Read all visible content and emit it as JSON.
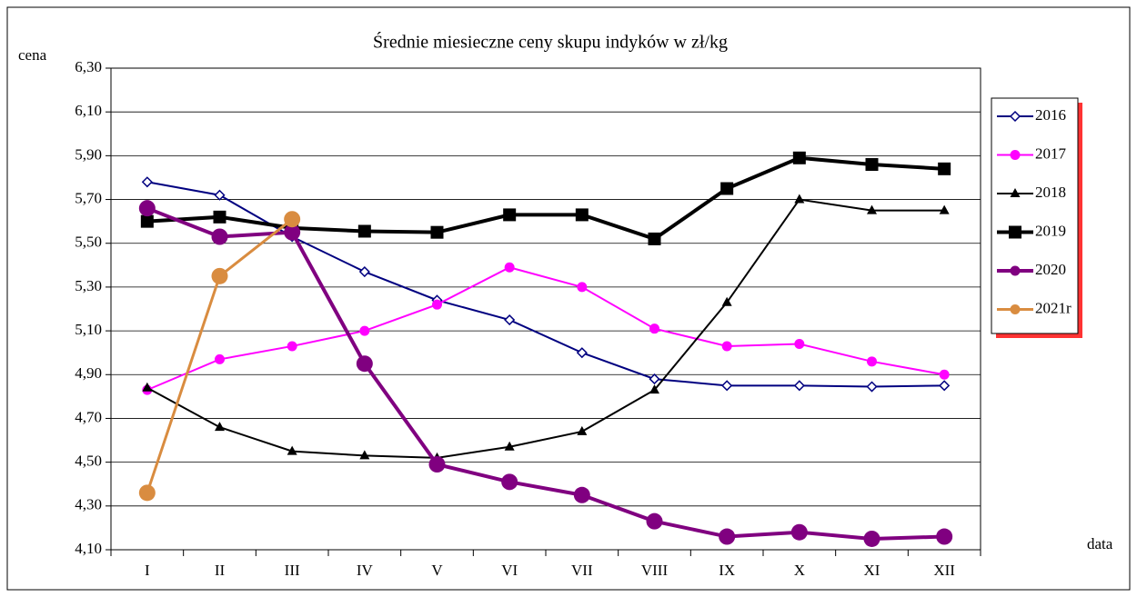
{
  "chart_data": {
    "type": "line",
    "title": "Średnie miesieczne ceny skupu indyków w zł/kg",
    "y_label": "cena",
    "x_label": "data",
    "categories": [
      "I",
      "II",
      "III",
      "IV",
      "V",
      "VI",
      "VII",
      "VIII",
      "IX",
      "X",
      "XI",
      "XII"
    ],
    "ylim": [
      4.1,
      6.3
    ],
    "yticks": [
      {
        "value": 4.1,
        "label": "4,10"
      },
      {
        "value": 4.3,
        "label": "4,30"
      },
      {
        "value": 4.5,
        "label": "4,50"
      },
      {
        "value": 4.7,
        "label": "4,70"
      },
      {
        "value": 4.9,
        "label": "4,90"
      },
      {
        "value": 5.1,
        "label": "5,10"
      },
      {
        "value": 5.3,
        "label": "5,30"
      },
      {
        "value": 5.5,
        "label": "5,50"
      },
      {
        "value": 5.7,
        "label": "5,70"
      },
      {
        "value": 5.9,
        "label": "5,90"
      },
      {
        "value": 6.1,
        "label": "6,10"
      },
      {
        "value": 6.3,
        "label": "6,30"
      }
    ],
    "grid": true,
    "legend": "right",
    "series": [
      {
        "name": "2016",
        "color": "#000080",
        "marker": "diamond",
        "width": 2,
        "values": [
          5.78,
          5.72,
          5.53,
          5.37,
          5.24,
          5.15,
          5.0,
          4.88,
          4.85,
          4.85,
          4.845,
          4.85
        ]
      },
      {
        "name": "2017",
        "color": "#ff00ff",
        "marker": "circle",
        "width": 2,
        "values": [
          4.83,
          4.97,
          5.03,
          5.1,
          5.22,
          5.39,
          5.3,
          5.11,
          5.03,
          5.04,
          4.96,
          4.9
        ]
      },
      {
        "name": "2018",
        "color": "#000000",
        "marker": "triangle",
        "width": 2,
        "values": [
          4.84,
          4.66,
          4.55,
          4.53,
          4.52,
          4.57,
          4.64,
          4.83,
          5.23,
          5.7,
          5.65,
          5.65
        ]
      },
      {
        "name": "2019",
        "color": "#000000",
        "marker": "square",
        "width": 4,
        "values": [
          5.6,
          5.62,
          5.57,
          5.555,
          5.55,
          5.63,
          5.63,
          5.52,
          5.75,
          5.89,
          5.86,
          5.84
        ]
      },
      {
        "name": "2020",
        "color": "#800080",
        "marker": "bigcircle",
        "width": 4,
        "values": [
          5.66,
          5.53,
          5.55,
          4.95,
          4.49,
          4.41,
          4.35,
          4.23,
          4.16,
          4.18,
          4.15,
          4.16
        ]
      },
      {
        "name": "2021r",
        "color": "#d98c40",
        "marker": "bigcircle",
        "width": 3,
        "values": [
          4.36,
          5.35,
          5.61,
          null,
          null,
          null,
          null,
          null,
          null,
          null,
          null,
          null
        ]
      }
    ]
  }
}
